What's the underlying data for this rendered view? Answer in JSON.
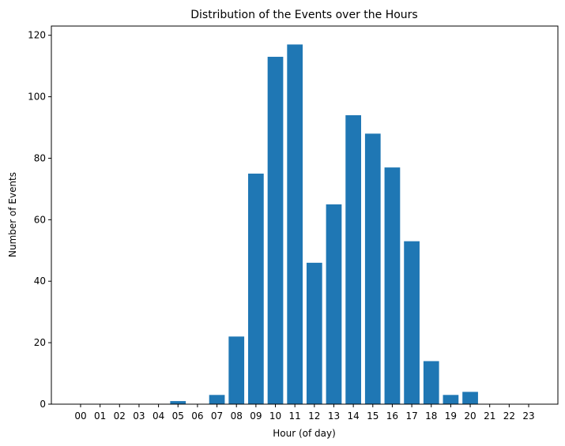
{
  "chart_data": {
    "type": "bar",
    "title": "Distribution of the Events over the Hours",
    "xlabel": "Hour (of day)",
    "ylabel": "Number of Events",
    "categories": [
      "00",
      "01",
      "02",
      "03",
      "04",
      "05",
      "06",
      "07",
      "08",
      "09",
      "10",
      "11",
      "12",
      "13",
      "14",
      "15",
      "16",
      "17",
      "18",
      "19",
      "20",
      "21",
      "22",
      "23"
    ],
    "values": [
      0,
      0,
      0,
      0,
      0,
      1,
      0,
      3,
      22,
      75,
      113,
      117,
      46,
      65,
      94,
      88,
      77,
      53,
      14,
      3,
      4,
      0,
      0,
      0
    ],
    "ylim": [
      0,
      123
    ],
    "yticks": [
      0,
      20,
      40,
      60,
      80,
      100,
      120
    ],
    "bar_color": "#1f77b4",
    "grid": false,
    "legend": "none"
  }
}
